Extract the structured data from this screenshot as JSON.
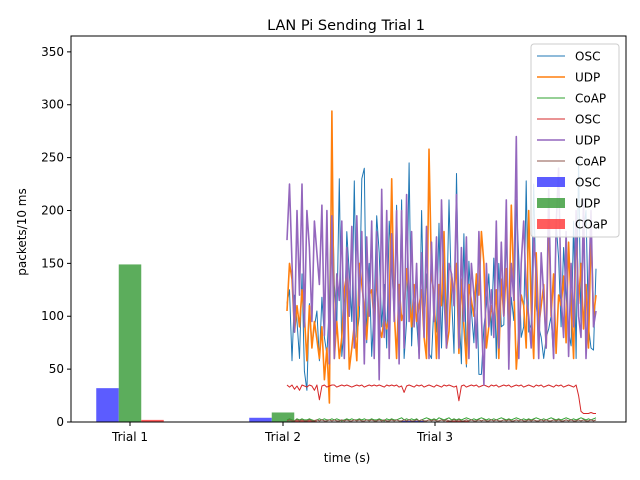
{
  "chart_data": {
    "type": "line",
    "title": "LAN Pi Sending Trial 1",
    "xlabel": "time (s)",
    "ylabel": "packets/10 ms",
    "ylim": [
      0,
      365
    ],
    "yticks": [
      0,
      50,
      100,
      150,
      200,
      250,
      300,
      350
    ],
    "xtick_labels": [
      "Trial 1",
      "Trial 2",
      "Trial 3"
    ],
    "grid": false,
    "legend_position": "top-right",
    "bars": {
      "categories": [
        "Trial 1",
        "Trial 2",
        "Trial 3"
      ],
      "series": [
        {
          "name": "OSC",
          "color": "#3333ff",
          "values": [
            32,
            4,
            1
          ]
        },
        {
          "name": "UDP",
          "color": "#339933",
          "values": [
            149,
            9,
            0
          ]
        },
        {
          "name": "COaP",
          "color": "#ff3333",
          "values": [
            2,
            2,
            1
          ]
        }
      ]
    },
    "lines": [
      {
        "name": "OSC",
        "color": "#1f77b4",
        "width": 1.0,
        "values": [
          112,
          125,
          58,
          120,
          95,
          60,
          140,
          48,
          30,
          112,
          72,
          90,
          105,
          58,
          118,
          80,
          64,
          112,
          245,
          130,
          92,
          230,
          62,
          90,
          180,
          140,
          95,
          228,
          80,
          100,
          230,
          240,
          75,
          150,
          62,
          110,
          195,
          160,
          90,
          130,
          70,
          190,
          150,
          100,
          205,
          80,
          210,
          60,
          95,
          245,
          72,
          130,
          95,
          62,
          200,
          88,
          140,
          65,
          60,
          112,
          85,
          188,
          70,
          150,
          95,
          210,
          120,
          65,
          235,
          108,
          55,
          178,
          52,
          152,
          105,
          75,
          140,
          45,
          45,
          90,
          110,
          140,
          82,
          155,
          60,
          150,
          90,
          92,
          180,
          60,
          118,
          96,
          210,
          155,
          80,
          90,
          228,
          85,
          92,
          225,
          110,
          90,
          80,
          60,
          80,
          88,
          100,
          60,
          188,
          155,
          90,
          165,
          120,
          85,
          72,
          190,
          60,
          250,
          85,
          180,
          200,
          90,
          70,
          68,
          145
        ]
      },
      {
        "name": "UDP",
        "color": "#ff7f0e",
        "width": 1.6,
        "values": [
          105,
          150,
          135,
          85,
          110,
          90,
          125,
          100,
          58,
          110,
          70,
          95,
          78,
          60,
          90,
          40,
          70,
          18,
          294,
          60,
          95,
          60,
          80,
          125,
          140,
          50,
          70,
          92,
          58,
          150,
          130,
          108,
          78,
          120,
          125,
          95,
          140,
          90,
          80,
          98,
          88,
          100,
          230,
          105,
          60,
          130,
          96,
          105,
          145,
          120,
          90,
          130,
          95,
          110,
          125,
          80,
          60,
          258,
          140,
          120,
          60,
          130,
          110,
          180,
          70,
          86,
          140,
          120,
          150,
          65,
          135,
          90,
          55,
          130,
          115,
          100,
          140,
          120,
          180,
          150,
          70,
          90,
          110,
          95,
          125,
          60,
          135,
          100,
          145,
          90,
          205,
          130,
          50,
          85,
          120,
          110,
          70,
          200,
          108,
          60,
          160,
          90,
          110,
          130,
          70,
          200,
          100,
          140,
          65,
          120,
          110,
          138,
          75,
          170,
          110,
          60,
          190,
          112,
          150,
          88,
          130,
          70,
          180,
          100,
          120
        ]
      },
      {
        "name": "CoAP",
        "color": "#2ca02c",
        "width": 1.0,
        "values": [
          2,
          3,
          2,
          1,
          3,
          2,
          3,
          2,
          2,
          3,
          2,
          1,
          2,
          3,
          2,
          3,
          2,
          2,
          3,
          2,
          3,
          2,
          1,
          2,
          3,
          2,
          3,
          2,
          2,
          3,
          2,
          3,
          2,
          2,
          3,
          2,
          2,
          3,
          2,
          1,
          3,
          2,
          3,
          2,
          2,
          3,
          4,
          2,
          3,
          2,
          3,
          2,
          3,
          1,
          2,
          3,
          4,
          3,
          2,
          3,
          2,
          4,
          3,
          2,
          3,
          4,
          2,
          3,
          2,
          3,
          2,
          3,
          4,
          3,
          2,
          3,
          2,
          3,
          4,
          3,
          2,
          3,
          2,
          3,
          2,
          3,
          4,
          3,
          2,
          3,
          2,
          3,
          4,
          3,
          2,
          3,
          2,
          3,
          2,
          3,
          4,
          3,
          2,
          3,
          2,
          3,
          4,
          3,
          2,
          3,
          2,
          3,
          4,
          3,
          2,
          3,
          2,
          3,
          4,
          3,
          2,
          3,
          2,
          3,
          4
        ]
      },
      {
        "name": "OSC",
        "color": "#d62728",
        "width": 1.0,
        "values": [
          35,
          33,
          35,
          31,
          34,
          30,
          35,
          34,
          33,
          35,
          34,
          30,
          35,
          21,
          34,
          35,
          33,
          34,
          35,
          35,
          33,
          34,
          35,
          34,
          35,
          34,
          33,
          34,
          35,
          34,
          35,
          33,
          34,
          35,
          34,
          35,
          34,
          35,
          34,
          33,
          35,
          34,
          35,
          34,
          35,
          33,
          34,
          28,
          34,
          35,
          34,
          33,
          35,
          34,
          35,
          33,
          34,
          35,
          34,
          33,
          35,
          34,
          33,
          35,
          34,
          35,
          34,
          33,
          34,
          20,
          34,
          35,
          33,
          34,
          35,
          34,
          35,
          33,
          34,
          35,
          34,
          33,
          35,
          34,
          35,
          33,
          34,
          35,
          34,
          35,
          33,
          34,
          35,
          34,
          35,
          33,
          34,
          35,
          34,
          33,
          35,
          34,
          35,
          33,
          34,
          35,
          34,
          33,
          35,
          34,
          35,
          33,
          34,
          35,
          34,
          33,
          35,
          25,
          10,
          8,
          8,
          8,
          9,
          8,
          8
        ]
      },
      {
        "name": "UDP",
        "color": "#9467bd",
        "width": 1.6,
        "values": [
          172,
          225,
          150,
          85,
          200,
          120,
          225,
          90,
          200,
          165,
          95,
          190,
          160,
          130,
          205,
          82,
          200,
          55,
          195,
          60,
          140,
          115,
          190,
          60,
          165,
          100,
          185,
          70,
          195,
          110,
          180,
          55,
          175,
          100,
          190,
          60,
          180,
          40,
          220,
          80,
          200,
          60,
          178,
          95,
          200,
          55,
          200,
          70,
          215,
          95,
          180,
          90,
          150,
          60,
          160,
          80,
          185,
          60,
          170,
          95,
          175,
          60,
          210,
          120,
          70,
          150,
          140,
          110,
          215,
          70,
          165,
          95,
          175,
          60,
          150,
          120,
          70,
          180,
          100,
          35,
          150,
          90,
          125,
          80,
          190,
          70,
          170,
          100,
          210,
          50,
          150,
          115,
          270,
          60,
          150,
          190,
          120,
          100,
          70,
          175,
          140,
          60,
          160,
          120,
          70,
          220,
          110,
          60,
          185,
          240,
          120,
          80,
          180,
          62,
          150,
          90,
          200,
          100,
          80,
          210,
          60,
          120,
          200,
          90,
          105
        ]
      },
      {
        "name": "CoAP",
        "color": "#8c564b",
        "width": 1.0,
        "values": [
          1,
          2,
          1,
          1,
          2,
          1,
          2,
          1,
          1,
          2,
          1,
          1,
          2,
          1,
          2,
          1,
          1,
          2,
          1,
          2,
          1,
          1,
          2,
          1,
          2,
          1,
          1,
          2,
          1,
          2,
          1,
          1,
          2,
          1,
          2,
          1,
          1,
          2,
          1,
          2,
          1,
          1,
          2,
          1,
          2,
          1,
          1,
          2,
          1,
          2,
          1,
          1,
          2,
          1,
          2,
          1,
          1,
          2,
          1,
          2,
          1,
          1,
          2,
          1,
          2,
          1,
          1,
          2,
          1,
          2,
          1,
          1,
          2,
          1,
          2,
          1,
          1,
          2,
          1,
          2,
          1,
          1,
          2,
          1,
          2,
          1,
          1,
          2,
          1,
          2,
          1,
          1,
          2,
          1,
          2,
          1,
          1,
          2,
          1,
          2,
          1,
          1,
          2,
          1,
          2,
          1,
          1,
          2,
          1,
          2,
          1,
          1,
          2,
          1,
          2,
          1,
          1,
          2,
          1,
          2,
          1,
          1,
          2,
          1,
          2
        ]
      }
    ]
  }
}
